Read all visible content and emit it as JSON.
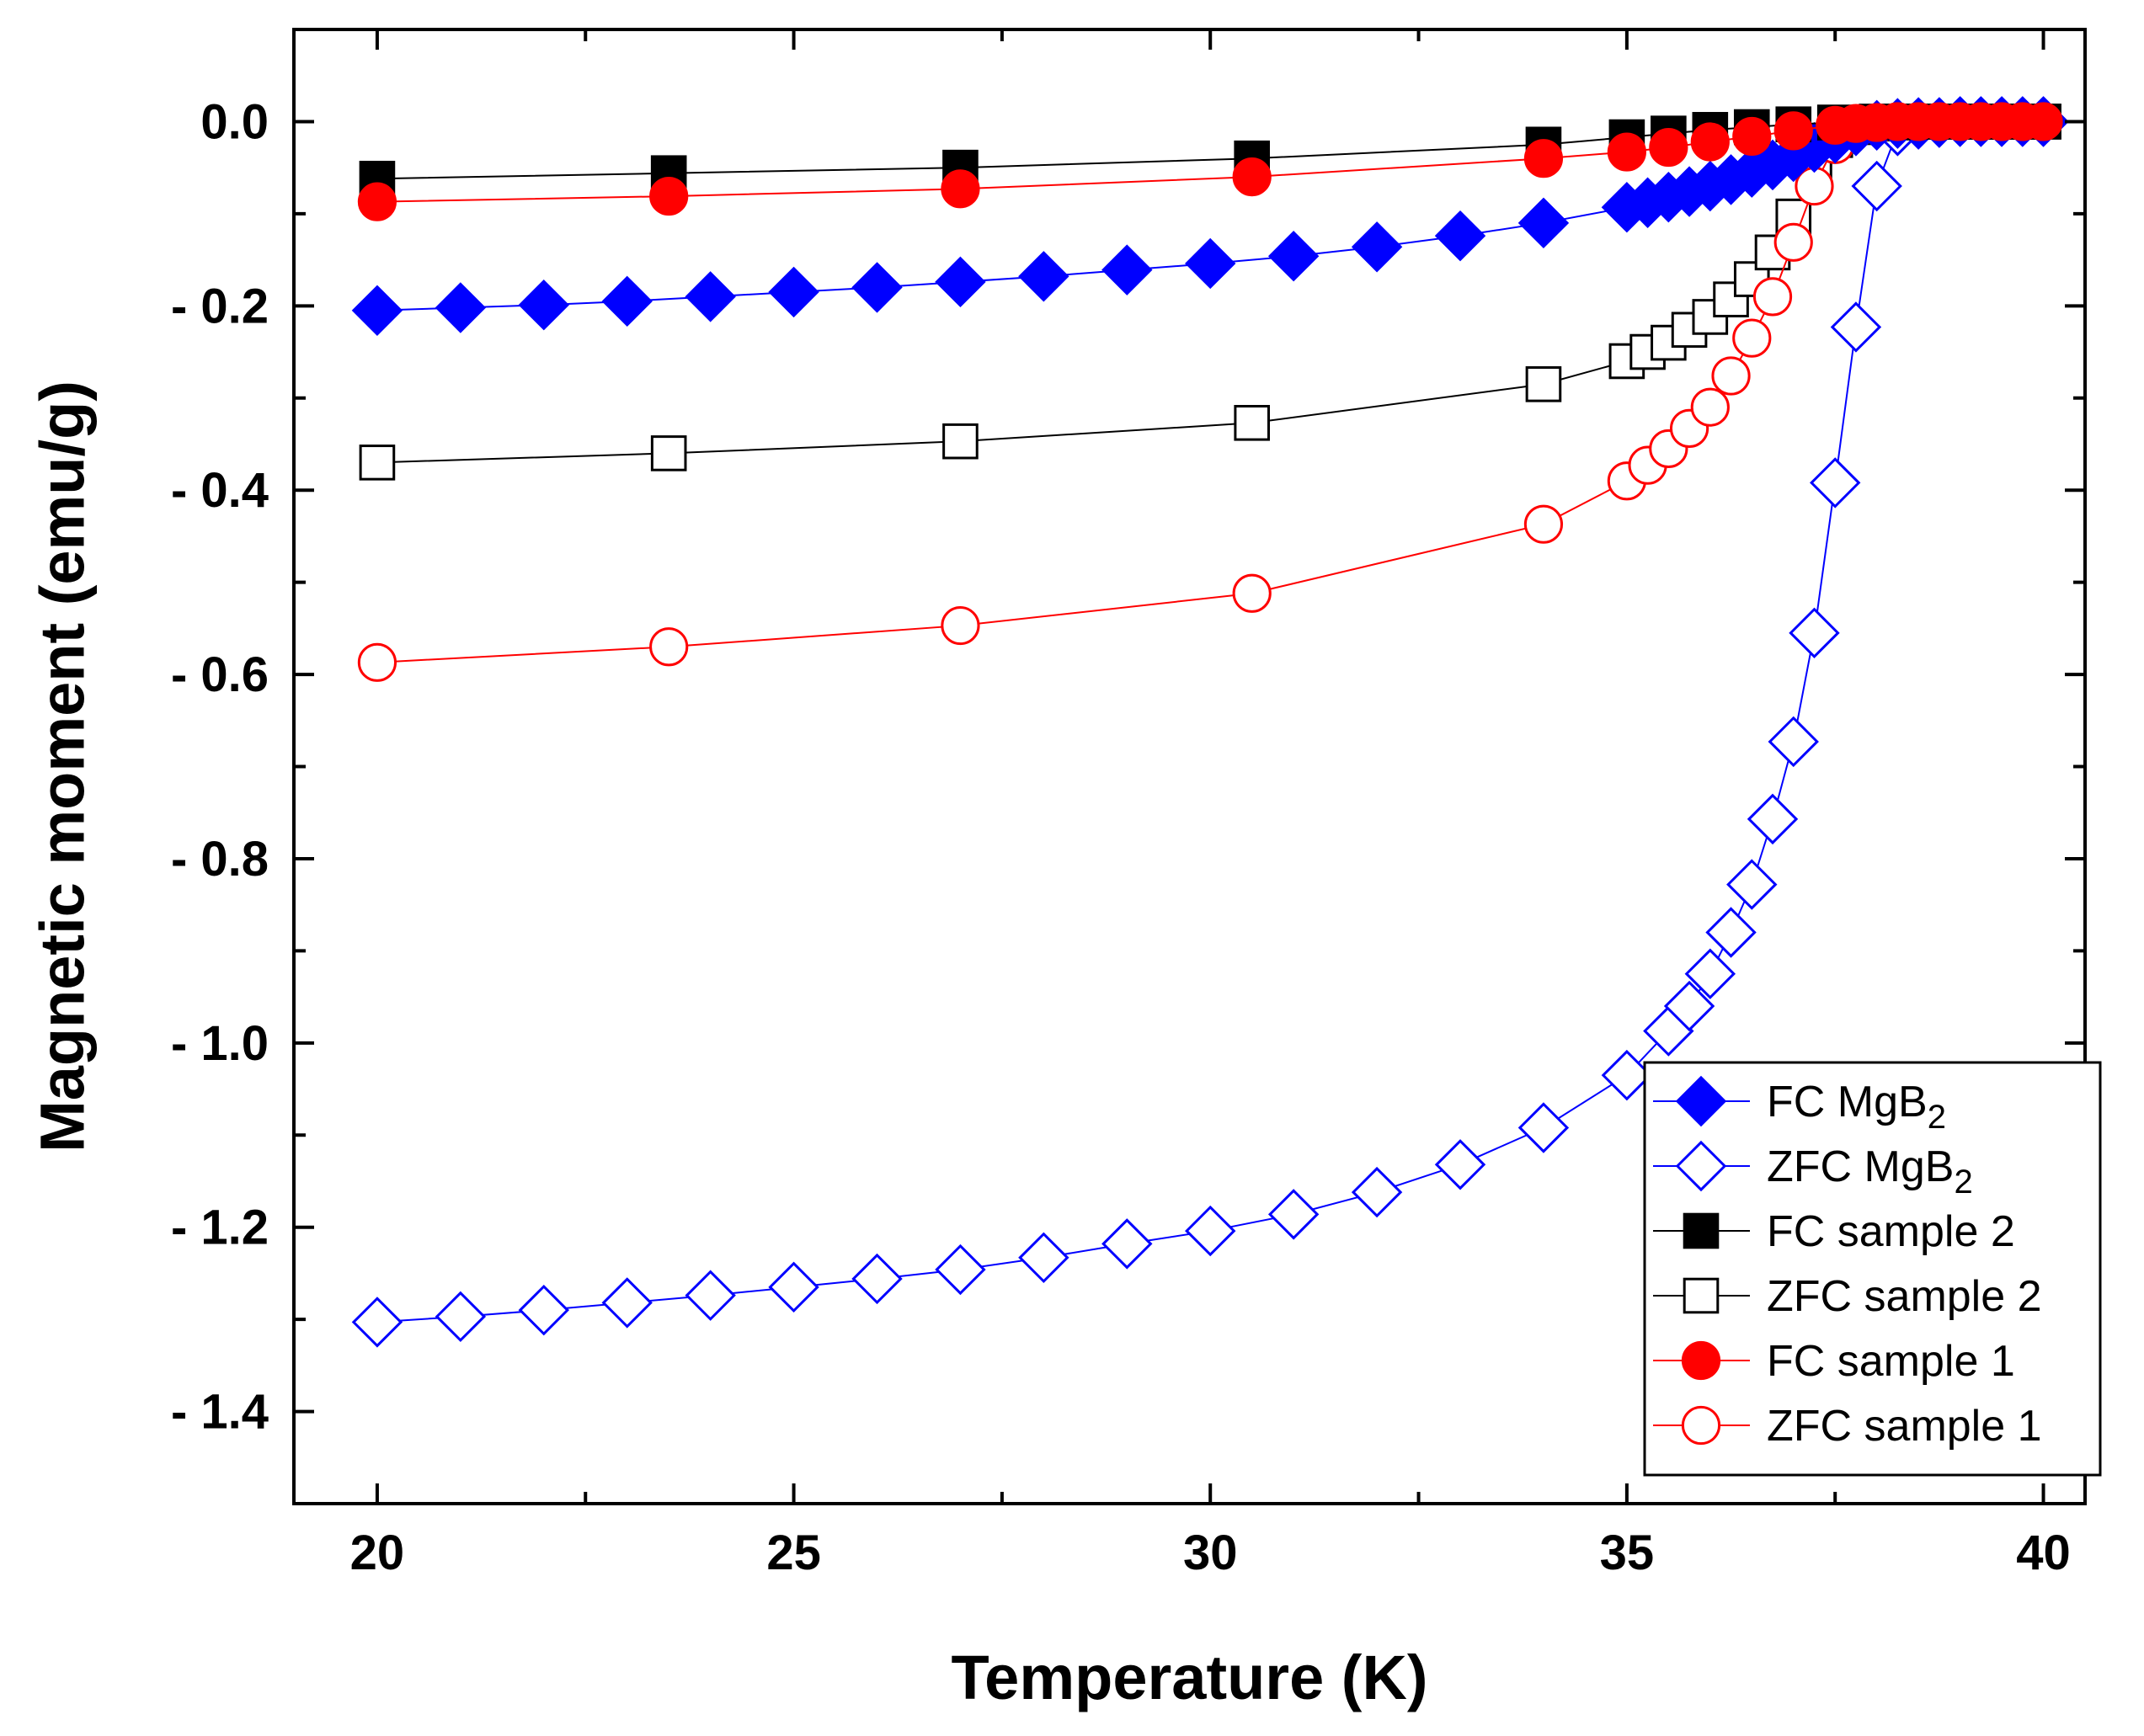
{
  "chart_data": {
    "type": "line",
    "title": "",
    "xlabel": "Temperature (K)",
    "ylabel": "Magnetic moment (emu/g)",
    "xlim": [
      19,
      40.5
    ],
    "ylim": [
      -1.5,
      0.1
    ],
    "xticks": [
      20,
      25,
      30,
      35,
      40
    ],
    "xtick_labels": [
      "20",
      "25",
      "30",
      "35",
      "40"
    ],
    "yticks": [
      0.0,
      -0.2,
      -0.4,
      -0.6,
      -0.8,
      -1.0,
      -1.2,
      -1.4
    ],
    "ytick_labels": [
      "0.0",
      "- 0.2",
      "- 0.4",
      "- 0.6",
      "- 0.8",
      "- 1.0",
      "- 1.2",
      "- 1.4"
    ],
    "grid": false,
    "legend_position": "bottom-right",
    "series": [
      {
        "name": "FC MgB",
        "subscript": "2",
        "color": "#0000ff",
        "marker": "diamond",
        "filled": true,
        "x": [
          20,
          21,
          22,
          23,
          24,
          25,
          26,
          27,
          28,
          29,
          30,
          31,
          32,
          33,
          34,
          35,
          35.25,
          35.5,
          35.75,
          36,
          36.25,
          36.5,
          36.75,
          37,
          37.25,
          37.5,
          37.75,
          38,
          38.25,
          38.5,
          38.75,
          39,
          39.25,
          39.5,
          39.75,
          40
        ],
        "y": [
          -0.205,
          -0.202,
          -0.199,
          -0.195,
          -0.19,
          -0.185,
          -0.18,
          -0.174,
          -0.168,
          -0.161,
          -0.154,
          -0.146,
          -0.136,
          -0.124,
          -0.11,
          -0.093,
          -0.088,
          -0.082,
          -0.076,
          -0.07,
          -0.063,
          -0.055,
          -0.047,
          -0.038,
          -0.028,
          -0.018,
          -0.01,
          -0.004,
          -0.002,
          -0.001,
          -0.001,
          0.0,
          0.0,
          0.0,
          0.0,
          0.0
        ]
      },
      {
        "name": "ZFC MgB",
        "subscript": "2",
        "color": "#0000ff",
        "marker": "diamond",
        "filled": false,
        "x": [
          20,
          21,
          22,
          23,
          24,
          25,
          26,
          27,
          28,
          29,
          30,
          31,
          32,
          33,
          34,
          35,
          35.5,
          35.75,
          36,
          36.25,
          36.5,
          36.75,
          37,
          37.25,
          37.5,
          37.75,
          38,
          38.25,
          38.5,
          38.75,
          39,
          39.25,
          39.5,
          39.75,
          40
        ],
        "y": [
          -1.303,
          -1.297,
          -1.29,
          -1.282,
          -1.274,
          -1.265,
          -1.256,
          -1.246,
          -1.233,
          -1.218,
          -1.204,
          -1.186,
          -1.162,
          -1.132,
          -1.092,
          -1.035,
          -0.987,
          -0.96,
          -0.925,
          -0.88,
          -0.828,
          -0.757,
          -0.673,
          -0.555,
          -0.392,
          -0.223,
          -0.07,
          -0.01,
          -0.003,
          -0.001,
          0.0,
          0.0,
          0.0,
          0.0,
          0.0
        ]
      },
      {
        "name": "FC sample 2",
        "subscript": "",
        "color": "#000000",
        "marker": "square",
        "filled": true,
        "x": [
          20,
          23.5,
          27,
          30.5,
          34,
          35,
          35.5,
          36,
          36.5,
          37,
          37.5,
          38,
          38.25,
          38.5,
          38.75,
          39,
          39.25,
          39.5,
          39.75,
          40
        ],
        "y": [
          -0.062,
          -0.056,
          -0.05,
          -0.04,
          -0.025,
          -0.017,
          -0.013,
          -0.009,
          -0.006,
          -0.003,
          -0.001,
          0.0,
          0.0,
          0.0,
          0.0,
          0.0,
          0.0,
          0.0,
          0.0,
          0.0
        ]
      },
      {
        "name": "ZFC sample 2",
        "subscript": "",
        "color": "#000000",
        "marker": "square",
        "filled": false,
        "x": [
          20,
          23.5,
          27,
          30.5,
          34,
          35,
          35.25,
          35.5,
          35.75,
          36,
          36.25,
          36.5,
          36.75,
          37,
          37.25,
          37.5,
          37.75,
          38,
          38.25,
          38.5,
          38.75,
          39,
          39.25,
          39.5,
          39.75,
          40
        ],
        "y": [
          -0.37,
          -0.36,
          -0.347,
          -0.327,
          -0.285,
          -0.26,
          -0.25,
          -0.24,
          -0.226,
          -0.212,
          -0.193,
          -0.171,
          -0.142,
          -0.103,
          -0.055,
          -0.02,
          -0.006,
          -0.002,
          -0.001,
          0.0,
          0.0,
          0.0,
          0.0,
          0.0,
          0.0,
          0.0
        ]
      },
      {
        "name": "FC sample 1",
        "subscript": "",
        "color": "#ff0000",
        "marker": "circle",
        "filled": true,
        "x": [
          20,
          23.5,
          27,
          30.5,
          34,
          35,
          35.5,
          36,
          36.5,
          37,
          37.5,
          37.75,
          38,
          38.25,
          38.5,
          38.75,
          39,
          39.25,
          39.5,
          39.75,
          40
        ],
        "y": [
          -0.087,
          -0.081,
          -0.073,
          -0.06,
          -0.04,
          -0.033,
          -0.028,
          -0.022,
          -0.016,
          -0.01,
          -0.004,
          -0.002,
          -0.001,
          0.0,
          0.0,
          0.0,
          0.0,
          0.0,
          0.0,
          0.0,
          0.0
        ]
      },
      {
        "name": "ZFC sample 1",
        "subscript": "",
        "color": "#ff0000",
        "marker": "circle",
        "filled": false,
        "x": [
          20,
          23.5,
          27,
          30.5,
          34,
          35,
          35.25,
          35.5,
          35.75,
          36,
          36.25,
          36.5,
          36.75,
          37,
          37.25,
          37.5,
          37.75,
          38,
          38.25,
          38.5,
          38.75,
          39,
          39.25,
          39.5,
          39.75,
          40
        ],
        "y": [
          -0.587,
          -0.57,
          -0.547,
          -0.512,
          -0.437,
          -0.39,
          -0.373,
          -0.355,
          -0.333,
          -0.31,
          -0.276,
          -0.235,
          -0.19,
          -0.131,
          -0.07,
          -0.025,
          -0.008,
          -0.003,
          -0.001,
          0.0,
          0.0,
          0.0,
          0.0,
          0.0,
          0.0,
          0.0
        ]
      }
    ]
  }
}
